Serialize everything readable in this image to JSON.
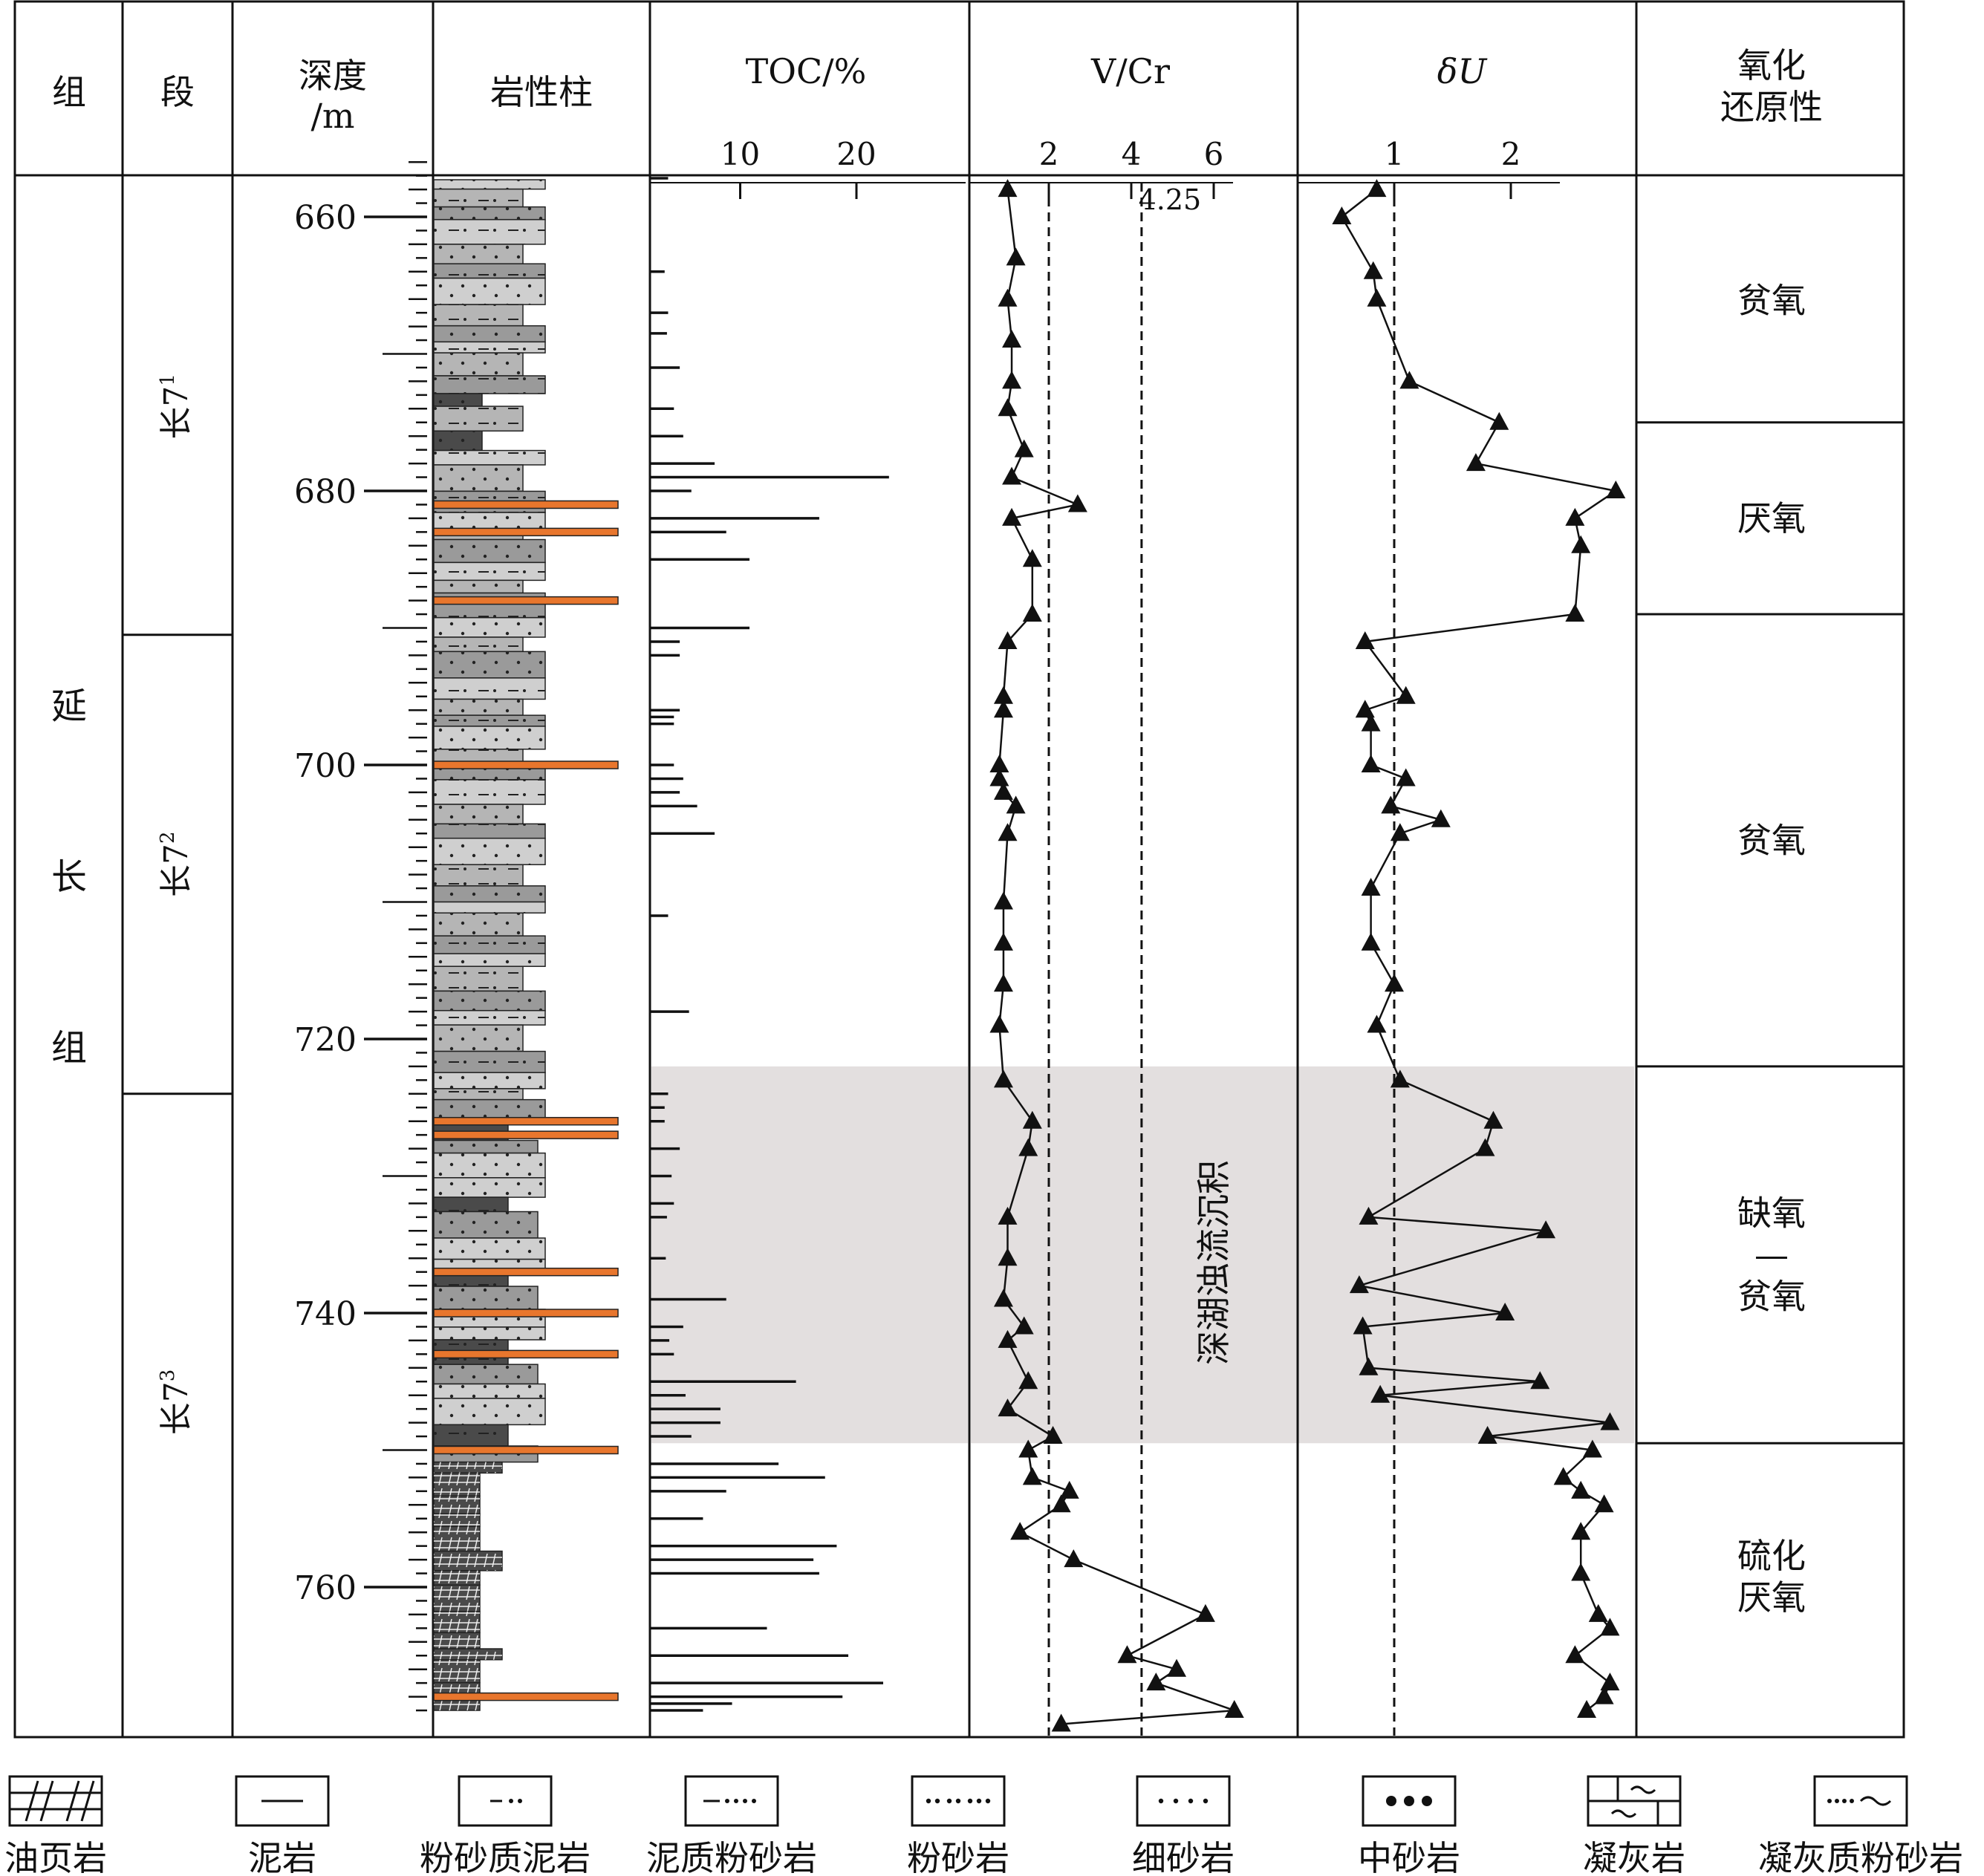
{
  "header": {
    "formation": "组",
    "member": "段",
    "depth_line1": "深度",
    "depth_line2": "/m",
    "lithology": "岩性柱",
    "toc": "TOC/%",
    "vcr": "V/Cr",
    "du": "δU",
    "redox_line1": "氧化",
    "redox_line2": "还原性"
  },
  "formation_name": [
    "延",
    "长",
    "组"
  ],
  "members": [
    {
      "label": "长7",
      "sup": "1",
      "top": 655,
      "bottom": 690.5
    },
    {
      "label": "长7",
      "sup": "2",
      "top": 690.5,
      "bottom": 724
    },
    {
      "label": "长7",
      "sup": "3",
      "top": 724,
      "bottom": 769
    }
  ],
  "depth_ticks": [
    "660",
    "680",
    "700",
    "720",
    "740",
    "760"
  ],
  "toc_ticks": [
    "10",
    "20"
  ],
  "vcr_ticks": [
    "2",
    "4",
    "6"
  ],
  "vcr_ref_label": "4.25",
  "du_ticks": [
    "1",
    "2"
  ],
  "redox_zones": [
    {
      "text": [
        "贫氧"
      ],
      "top": 655,
      "bottom": 675
    },
    {
      "text": [
        "厌氧"
      ],
      "top": 675,
      "bottom": 689
    },
    {
      "text": [
        "贫氧"
      ],
      "top": 689,
      "bottom": 722
    },
    {
      "text": [
        "缺氧",
        "—",
        "贫氧"
      ],
      "top": 722,
      "bottom": 749.5
    },
    {
      "text": [
        "硫化",
        "厌氧"
      ],
      "top": 749.5,
      "bottom": 769
    }
  ],
  "shaded_interval": {
    "top": 722,
    "bottom": 749.5,
    "label": "深湖浊流沉积",
    "color": "#e3dfdf"
  },
  "legend": [
    {
      "pattern": "oil-shale",
      "label": "油页岩"
    },
    {
      "pattern": "mudstone",
      "label": "泥岩"
    },
    {
      "pattern": "silty-mudstone",
      "label": "粉砂质泥岩"
    },
    {
      "pattern": "muddy-siltstone",
      "label": "泥质粉砂岩"
    },
    {
      "pattern": "siltstone",
      "label": "粉砂岩"
    },
    {
      "pattern": "fine-sandstone",
      "label": "细砂岩"
    },
    {
      "pattern": "medium-sandstone",
      "label": "中砂岩"
    },
    {
      "pattern": "tuff",
      "label": "凝灰岩"
    },
    {
      "pattern": "tuffaceous-siltstone",
      "label": "凝灰质粉砂岩"
    }
  ],
  "colors": {
    "tuff": "#e8762d",
    "dark_litho": "#4a4a4a",
    "mid_litho": "#9a9a9a",
    "light_litho": "#cfcfcf"
  },
  "chart_data": {
    "type": "line",
    "depth_range": [
      655,
      769
    ],
    "toc": {
      "xlim": [
        0,
        30
      ],
      "depth": [
        657,
        664,
        667,
        668.5,
        671,
        674,
        676,
        678,
        679,
        680,
        682,
        683,
        685,
        690,
        691,
        692,
        696,
        696.5,
        697,
        700,
        701,
        702,
        703,
        705,
        711,
        718,
        724,
        725,
        726,
        728,
        730,
        732,
        733,
        736,
        739,
        741,
        742,
        743,
        745,
        746,
        747,
        748,
        749,
        751,
        752,
        753,
        755,
        757,
        758,
        759,
        763,
        765,
        767,
        768,
        768.5,
        769
      ],
      "values": [
        1.5,
        1.2,
        1.5,
        1.4,
        2.5,
        2,
        2.8,
        5.5,
        20.5,
        3.5,
        14.5,
        6.5,
        8.5,
        8.5,
        2.5,
        2.5,
        2.5,
        2,
        2,
        2,
        2.8,
        2.5,
        4,
        5.5,
        1.5,
        3.3,
        1.5,
        1.2,
        1.2,
        2.5,
        1.8,
        2,
        1.4,
        1.3,
        6.5,
        2.8,
        1.6,
        2,
        12.5,
        3,
        6,
        6,
        3.5,
        11,
        15,
        6.5,
        4.5,
        16,
        14,
        14.5,
        10,
        17,
        20,
        16.5,
        7,
        4.5
      ]
    },
    "vcr": {
      "xlim": [
        0,
        7.5
      ],
      "depth": [
        658,
        663,
        666,
        669,
        672,
        674,
        677,
        679,
        681,
        682,
        685,
        689,
        691,
        695,
        696,
        700,
        701,
        702,
        703,
        705,
        710,
        713,
        716,
        719,
        723,
        726,
        728,
        733,
        736,
        739,
        741,
        742,
        745,
        747,
        749,
        750,
        752,
        753,
        754,
        756,
        758,
        762,
        765,
        766,
        767,
        769,
        770
      ],
      "values": [
        1,
        1.2,
        1,
        1.1,
        1.1,
        1,
        1.4,
        1.1,
        2.7,
        1.1,
        1.6,
        1.6,
        1,
        0.9,
        0.9,
        0.8,
        0.8,
        0.9,
        1.2,
        1,
        0.9,
        0.9,
        0.9,
        0.8,
        0.9,
        1.6,
        1.5,
        1,
        1,
        0.9,
        1.4,
        1,
        1.5,
        1,
        2.1,
        1.5,
        1.6,
        2.5,
        2.3,
        1.3,
        2.6,
        5.8,
        3.9,
        5.1,
        4.6,
        6.5,
        2.3
      ]
    },
    "du": {
      "xlim": [
        0.2,
        3.1
      ],
      "depth": [
        658,
        660,
        664,
        666,
        672,
        675,
        678,
        680,
        682,
        684,
        689,
        691,
        695,
        696,
        697,
        700,
        701,
        703,
        704,
        705,
        709,
        713,
        716,
        719,
        723,
        726,
        728,
        733,
        734,
        738,
        740,
        741,
        744,
        745,
        746,
        748,
        749,
        750,
        752,
        753,
        754,
        756,
        759,
        762,
        763,
        765,
        767,
        768,
        769
      ],
      "values": [
        0.85,
        0.55,
        0.82,
        0.85,
        1.13,
        1.9,
        1.7,
        2.9,
        2.55,
        2.6,
        2.55,
        0.75,
        1.1,
        0.75,
        0.8,
        0.8,
        1.1,
        0.97,
        1.4,
        1.05,
        0.8,
        0.8,
        1,
        0.85,
        1.05,
        1.85,
        1.78,
        0.78,
        2.3,
        0.7,
        1.95,
        0.73,
        0.78,
        2.25,
        0.88,
        2.85,
        1.8,
        2.7,
        2.45,
        2.6,
        2.8,
        2.6,
        2.6,
        2.75,
        2.85,
        2.55,
        2.85,
        2.8,
        2.65
      ]
    }
  }
}
